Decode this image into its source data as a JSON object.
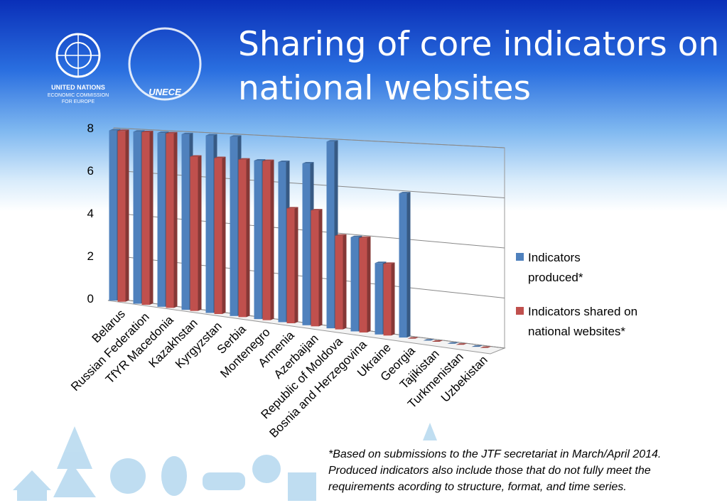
{
  "logo": {
    "lines": [
      "UNITED NATIONS",
      "ECONOMIC COMMISSION",
      "FOR EUROPE"
    ],
    "badge": "UNECE"
  },
  "chart_data": {
    "type": "bar",
    "title": "Sharing of core indicators on national websites",
    "categories": [
      "Belarus",
      "Russian Federation",
      "TfYR Macedonia",
      "Kazakhstan",
      "Kyrgyzstan",
      "Serbia",
      "Montenegro",
      "Armenia",
      "Azerbaijan",
      "Republic of Moldova",
      "Bosnia and Herzegovina",
      "Ukraine",
      "Georgia",
      "Tajikistan",
      "Turkmenistan",
      "Uzbekistan"
    ],
    "series": [
      {
        "name": "Indicators produced*",
        "color": "#4f81bd",
        "values": [
          8,
          8,
          8,
          8,
          8,
          8,
          7,
          7,
          7,
          8,
          4,
          3,
          6,
          0,
          0,
          0
        ]
      },
      {
        "name": "Indicators shared on national websites*",
        "color": "#c0504d",
        "values": [
          8,
          8,
          8,
          7,
          7,
          7,
          7,
          5,
          5,
          4,
          4,
          3,
          0,
          0,
          0,
          0
        ]
      }
    ],
    "ylim": [
      0,
      8
    ],
    "yticks": [
      0,
      2,
      4,
      6,
      8
    ],
    "grid": true,
    "legend": "right",
    "footnote": [
      "*Based on submissions to the JTF secretariat in March/April 2014.",
      "Produced indicators also include those that do not fully meet the",
      "requirements acording to structure, format, and time series."
    ]
  }
}
